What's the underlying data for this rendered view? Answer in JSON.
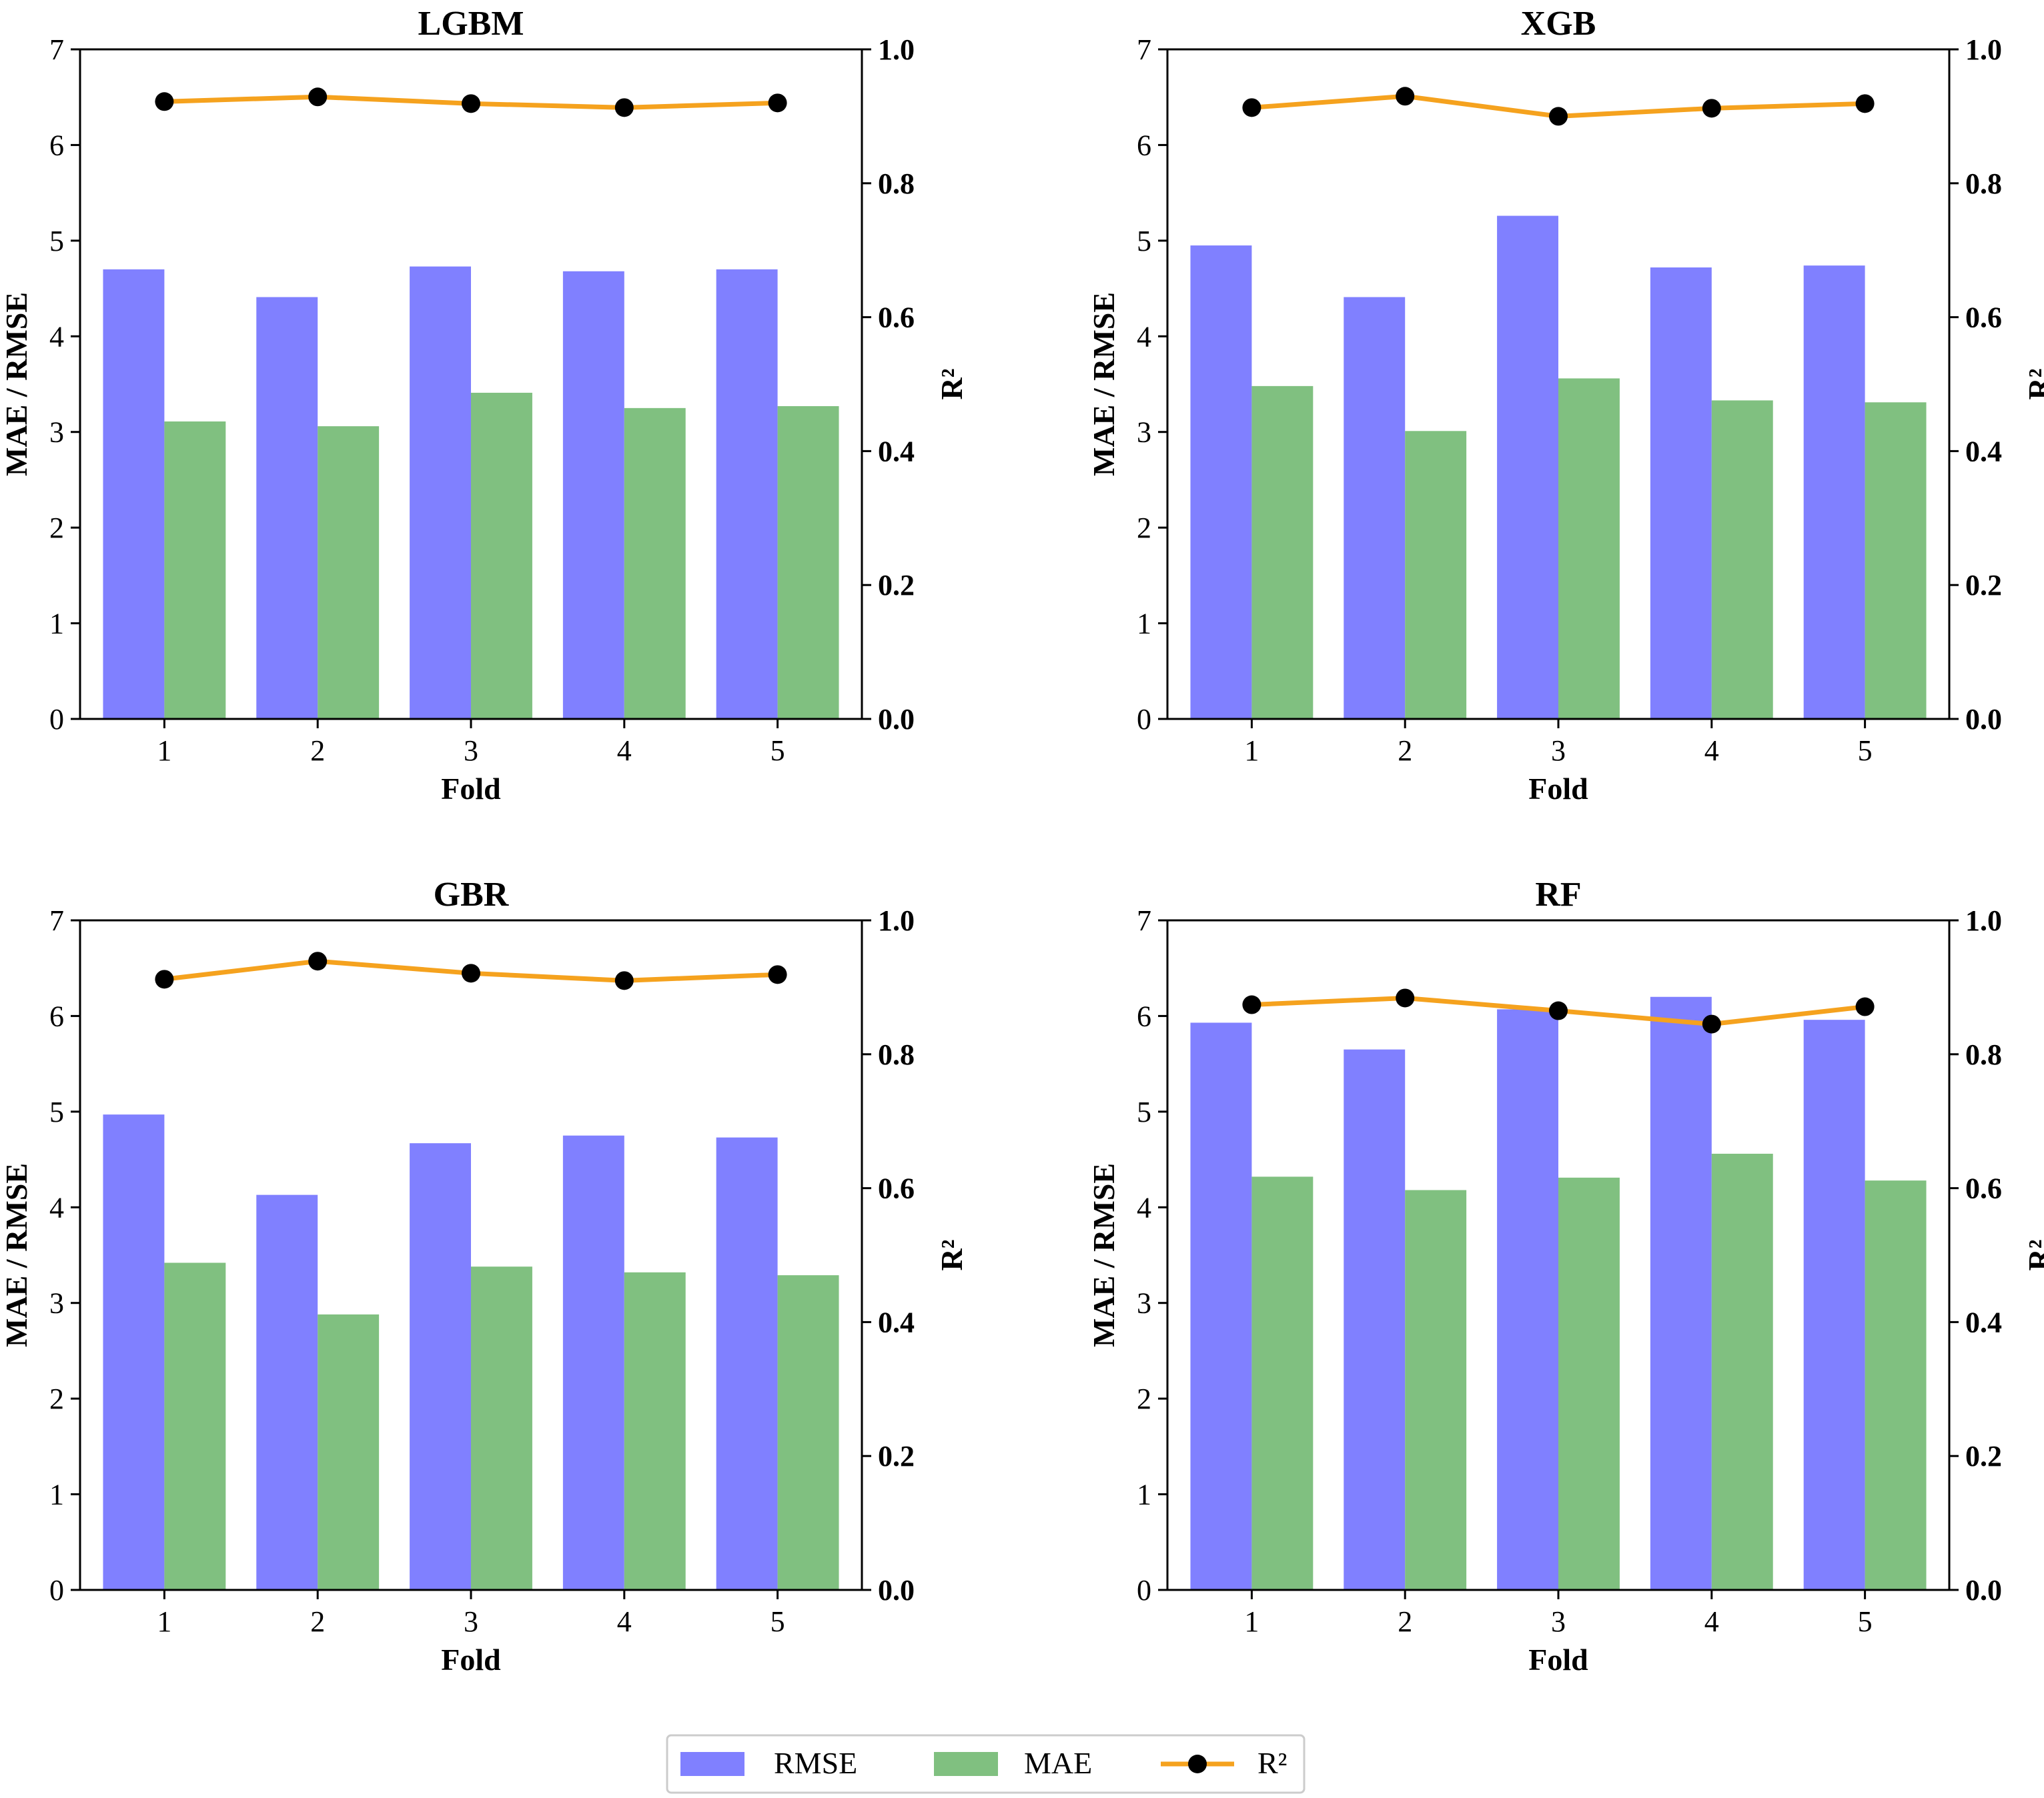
{
  "chart_data": [
    {
      "type": "bar",
      "title": "LGBM",
      "xlabel": "Fold",
      "ylabel": "MAE / RMSE",
      "y2label": "R²",
      "categories": [
        "1",
        "2",
        "3",
        "4",
        "5"
      ],
      "ylim": [
        0,
        7
      ],
      "y2lim": [
        0.0,
        1.0
      ],
      "series": [
        {
          "name": "RMSE",
          "kind": "bar",
          "values": [
            4.7,
            4.41,
            4.73,
            4.68,
            4.7
          ]
        },
        {
          "name": "MAE",
          "kind": "bar",
          "values": [
            3.11,
            3.06,
            3.41,
            3.25,
            3.27
          ]
        },
        {
          "name": "R²",
          "kind": "line",
          "axis": "right",
          "values": [
            0.922,
            0.929,
            0.919,
            0.913,
            0.92
          ]
        }
      ]
    },
    {
      "type": "bar",
      "title": "XGB",
      "xlabel": "Fold",
      "ylabel": "MAE / RMSE",
      "y2label": "R²",
      "categories": [
        "1",
        "2",
        "3",
        "4",
        "5"
      ],
      "ylim": [
        0,
        7
      ],
      "y2lim": [
        0.0,
        1.0
      ],
      "series": [
        {
          "name": "RMSE",
          "kind": "bar",
          "values": [
            4.95,
            4.41,
            5.26,
            4.72,
            4.74
          ]
        },
        {
          "name": "MAE",
          "kind": "bar",
          "values": [
            3.48,
            3.01,
            3.56,
            3.33,
            3.31
          ]
        },
        {
          "name": "R²",
          "kind": "line",
          "axis": "right",
          "values": [
            0.913,
            0.93,
            0.9,
            0.912,
            0.919
          ]
        }
      ]
    },
    {
      "type": "bar",
      "title": "GBR",
      "xlabel": "Fold",
      "ylabel": "MAE / RMSE",
      "y2label": "R²",
      "categories": [
        "1",
        "2",
        "3",
        "4",
        "5"
      ],
      "ylim": [
        0,
        7
      ],
      "y2lim": [
        0.0,
        1.0
      ],
      "series": [
        {
          "name": "RMSE",
          "kind": "bar",
          "values": [
            4.97,
            4.13,
            4.67,
            4.75,
            4.73
          ]
        },
        {
          "name": "MAE",
          "kind": "bar",
          "values": [
            3.42,
            2.88,
            3.38,
            3.32,
            3.29
          ]
        },
        {
          "name": "R²",
          "kind": "line",
          "axis": "right",
          "values": [
            0.912,
            0.939,
            0.921,
            0.91,
            0.919
          ]
        }
      ]
    },
    {
      "type": "bar",
      "title": "RF",
      "xlabel": "Fold",
      "ylabel": "MAE / RMSE",
      "y2label": "R²",
      "categories": [
        "1",
        "2",
        "3",
        "4",
        "5"
      ],
      "ylim": [
        0,
        7
      ],
      "y2lim": [
        0.0,
        1.0
      ],
      "series": [
        {
          "name": "RMSE",
          "kind": "bar",
          "values": [
            5.93,
            5.65,
            6.07,
            6.2,
            5.96
          ]
        },
        {
          "name": "MAE",
          "kind": "bar",
          "values": [
            4.32,
            4.18,
            4.31,
            4.56,
            4.28
          ]
        },
        {
          "name": "R²",
          "kind": "line",
          "axis": "right",
          "values": [
            0.874,
            0.884,
            0.865,
            0.845,
            0.871
          ]
        }
      ]
    }
  ],
  "yticks": [
    "0",
    "1",
    "2",
    "3",
    "4",
    "5",
    "6",
    "7"
  ],
  "y2ticks": [
    "0.0",
    "0.2",
    "0.4",
    "0.6",
    "0.8",
    "1.0"
  ],
  "legend": {
    "placement": "bottom-center",
    "items": [
      {
        "label": "RMSE",
        "kind": "bar"
      },
      {
        "label": "MAE",
        "kind": "bar"
      },
      {
        "label": "R²",
        "kind": "line"
      }
    ]
  },
  "colors": {
    "rmse": "#8080ff",
    "mae": "#80c080",
    "r2_line": "#f5a21e",
    "r2_marker": "#000000",
    "axis": "#000000"
  }
}
